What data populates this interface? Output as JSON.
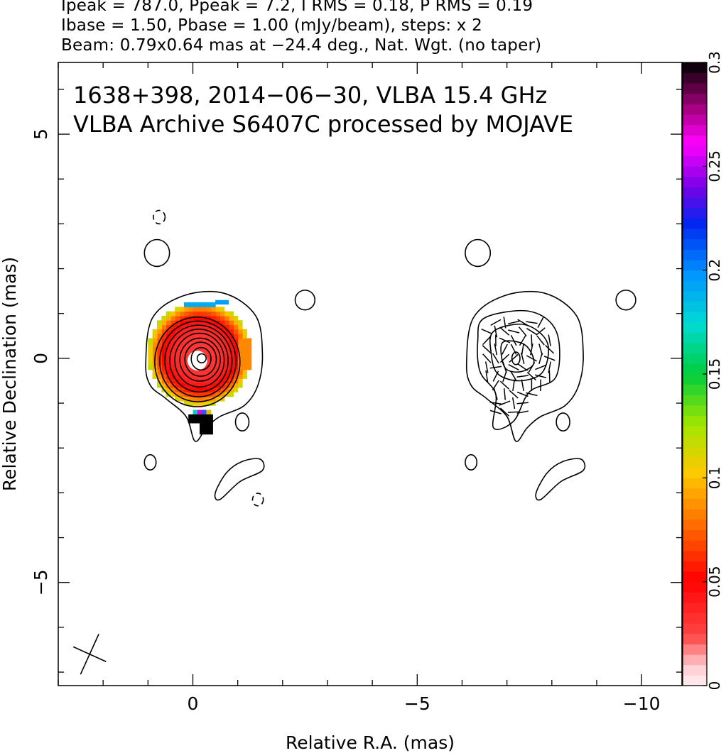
{
  "header": {
    "line1": "Ipeak = 787.0, Ppeak = 7.2, I RMS = 0.18, P RMS = 0.19",
    "line2": "Ibase = 1.50, Pbase = 1.00 (mJy/beam), steps: x 2",
    "line3": "Beam: 0.79x0.64 mas at −24.4 deg., Nat. Wgt. (no taper)"
  },
  "chart_data": {
    "type": "heatmap",
    "title": "1638+398, 2014−06−30, VLBA 15.4 GHz",
    "subtitle": "VLBA Archive S6407C processed by MOJAVE",
    "xlabel": "Relative R.A. (mas)",
    "ylabel": "Relative Declination (mas)",
    "xlim": [
      3.0,
      -10.9
    ],
    "ylim": [
      -7.3,
      6.6
    ],
    "x_ticks": [
      {
        "value": 0,
        "label": "0"
      },
      {
        "value": -5,
        "label": "−5"
      },
      {
        "value": -10,
        "label": "−10"
      }
    ],
    "y_ticks": [
      {
        "value": 5,
        "label": "5"
      },
      {
        "value": 0,
        "label": "0"
      },
      {
        "value": -5,
        "label": "−5"
      }
    ],
    "colorbar": {
      "range": [
        0,
        0.3
      ],
      "ticks": [
        {
          "value": 0,
          "label": "0"
        },
        {
          "value": 0.05,
          "label": "0.05"
        },
        {
          "value": 0.1,
          "label": "0.1"
        },
        {
          "value": 0.15,
          "label": "0.15"
        },
        {
          "value": 0.2,
          "label": "0.2"
        },
        {
          "value": 0.25,
          "label": "0.25"
        },
        {
          "value": 0.3,
          "label": "0.3"
        }
      ]
    },
    "contour_levels_mJy": [
      1.5,
      3,
      6,
      12,
      24,
      48,
      96,
      192,
      384,
      768
    ],
    "left_panel": {
      "core": [
        -0.1,
        -0.05
      ],
      "frac_pol_core": 0.03,
      "frac_pol_edge": 0.12
    },
    "right_panel": {
      "core": [
        -7.2,
        0.0
      ],
      "evpa_vectors": "random orientation"
    },
    "beam": {
      "major_mas": 0.79,
      "minor_mas": 0.64,
      "pa_deg": -24.4,
      "position": "bottom-left"
    }
  }
}
